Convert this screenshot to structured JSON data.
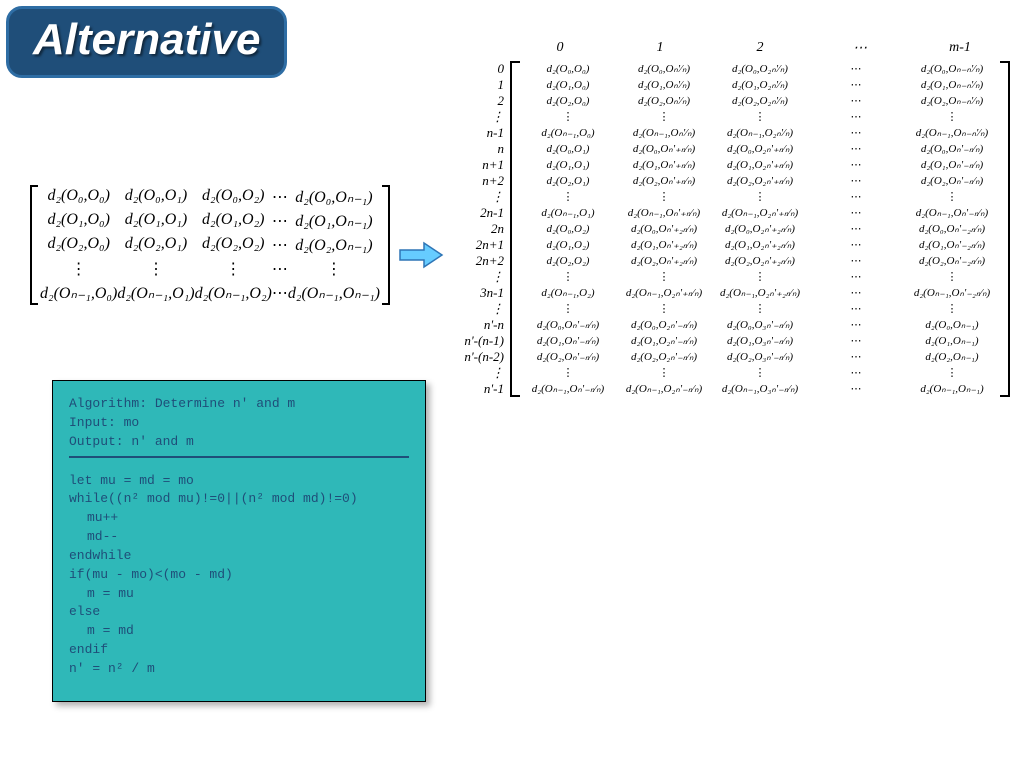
{
  "title": "Alternative",
  "colors": {
    "badge_bg": "#1f4e79",
    "badge_border": "#2e6da4",
    "badge_text": "#ffffff",
    "algo_bg": "#2fb8b8",
    "algo_text": "#1f4e79",
    "arrow_fill": "#66ccff",
    "arrow_stroke": "#2e75b6"
  },
  "small_matrix": {
    "rows": [
      [
        "d₂(O₀,O₀)",
        "d₂(O₀,O₁)",
        "d₂(O₀,O₂)",
        "⋯",
        "d₂(O₀,Oₙ₋₁)"
      ],
      [
        "d₂(O₁,O₀)",
        "d₂(O₁,O₁)",
        "d₂(O₁,O₂)",
        "⋯",
        "d₂(O₁,Oₙ₋₁)"
      ],
      [
        "d₂(O₂,O₀)",
        "d₂(O₂,O₁)",
        "d₂(O₂,O₂)",
        "⋯",
        "d₂(O₂,Oₙ₋₁)"
      ],
      [
        "⋮",
        "⋮",
        "⋮",
        "⋯",
        "⋮"
      ],
      [
        "d₂(Oₙ₋₁,O₀)",
        "d₂(Oₙ₋₁,O₁)",
        "d₂(Oₙ₋₁,O₂)",
        "⋯",
        "d₂(Oₙ₋₁,Oₙ₋₁)"
      ]
    ]
  },
  "algorithm": {
    "header1": "Algorithm: Determine n' and m",
    "header2": "Input: mo",
    "header3": "Output: n' and m",
    "line1": "let mu = md = mo",
    "line2": "while((n² mod mu)!=0||(n² mod md)!=0)",
    "line3": "mu++",
    "line4": "md--",
    "line5": "endwhile",
    "line6": "if(mu - mo)<(mo - md)",
    "line7": "m = mu",
    "line8": "else",
    "line9": "m = md",
    "line10": "endif",
    "line11": "n' = n² / m"
  },
  "big_matrix": {
    "col_headers": [
      "0",
      "1",
      "2",
      "⋯",
      "m-1"
    ],
    "row_labels": [
      "0",
      "1",
      "2",
      "⋮",
      "n-1",
      "n",
      "n+1",
      "n+2",
      "⋮",
      "2n-1",
      "2n",
      "2n+1",
      "2n+2",
      "⋮",
      "3n-1",
      "⋮",
      "n'-n",
      "n'-(n-1)",
      "n'-(n-2)",
      "⋮",
      "n'-1"
    ],
    "rows": [
      [
        "d₂(O₀,O₀)",
        "d₂(O₀,Oₙ'⁄ₙ)",
        "d₂(O₀,O₂ₙ'⁄ₙ)",
        "⋯",
        "d₂(O₀,Oₙ₋ₙ'⁄ₙ)"
      ],
      [
        "d₂(O₁,O₀)",
        "d₂(O₁,Oₙ'⁄ₙ)",
        "d₂(O₁,O₂ₙ'⁄ₙ)",
        "⋯",
        "d₂(O₁,Oₙ₋ₙ'⁄ₙ)"
      ],
      [
        "d₂(O₂,O₀)",
        "d₂(O₂,Oₙ'⁄ₙ)",
        "d₂(O₂,O₂ₙ'⁄ₙ)",
        "⋯",
        "d₂(O₂,Oₙ₋ₙ'⁄ₙ)"
      ],
      [
        "⋮",
        "⋮",
        "⋮",
        "⋯",
        "⋮"
      ],
      [
        "d₂(Oₙ₋₁,O₀)",
        "d₂(Oₙ₋₁,Oₙ'⁄ₙ)",
        "d₂(Oₙ₋₁,O₂ₙ'⁄ₙ)",
        "⋯",
        "d₂(Oₙ₋₁,Oₙ₋ₙ'⁄ₙ)"
      ],
      [
        "d₂(O₀,O₁)",
        "d₂(O₀,Oₙ'₊ₙ⁄ₙ)",
        "d₂(O₀,O₂ₙ'₊ₙ⁄ₙ)",
        "⋯",
        "d₂(O₀,Oₙ'₋ₙ⁄ₙ)"
      ],
      [
        "d₂(O₁,O₁)",
        "d₂(O₁,Oₙ'₊ₙ⁄ₙ)",
        "d₂(O₁,O₂ₙ'₊ₙ⁄ₙ)",
        "⋯",
        "d₂(O₁,Oₙ'₋ₙ⁄ₙ)"
      ],
      [
        "d₂(O₂,O₁)",
        "d₂(O₂,Oₙ'₊ₙ⁄ₙ)",
        "d₂(O₂,O₂ₙ'₊ₙ⁄ₙ)",
        "⋯",
        "d₂(O₂,Oₙ'₋ₙ⁄ₙ)"
      ],
      [
        "⋮",
        "⋮",
        "⋮",
        "⋯",
        "⋮"
      ],
      [
        "d₂(Oₙ₋₁,O₁)",
        "d₂(Oₙ₋₁,Oₙ'₊ₙ⁄ₙ)",
        "d₂(Oₙ₋₁,O₂ₙ'₊ₙ⁄ₙ)",
        "⋯",
        "d₂(Oₙ₋₁,Oₙ'₋ₙ⁄ₙ)"
      ],
      [
        "d₂(O₀,O₂)",
        "d₂(O₀,Oₙ'₊₂ₙ⁄ₙ)",
        "d₂(O₀,O₂ₙ'₊₂ₙ⁄ₙ)",
        "⋯",
        "d₂(O₀,Oₙ'₋₂ₙ⁄ₙ)"
      ],
      [
        "d₂(O₁,O₂)",
        "d₂(O₁,Oₙ'₊₂ₙ⁄ₙ)",
        "d₂(O₁,O₂ₙ'₊₂ₙ⁄ₙ)",
        "⋯",
        "d₂(O₁,Oₙ'₋₂ₙ⁄ₙ)"
      ],
      [
        "d₂(O₂,O₂)",
        "d₂(O₂,Oₙ'₊₂ₙ⁄ₙ)",
        "d₂(O₂,O₂ₙ'₊₂ₙ⁄ₙ)",
        "⋯",
        "d₂(O₂,Oₙ'₋₂ₙ⁄ₙ)"
      ],
      [
        "⋮",
        "⋮",
        "⋮",
        "⋯",
        "⋮"
      ],
      [
        "d₂(Oₙ₋₁,O₂)",
        "d₂(Oₙ₋₁,O₂ₙ'₊ₙ⁄ₙ)",
        "d₂(Oₙ₋₁,O₂ₙ'₊₂ₙ⁄ₙ)",
        "⋯",
        "d₂(Oₙ₋₁,Oₙ'₋₂ₙ⁄ₙ)"
      ],
      [
        "⋮",
        "⋮",
        "⋮",
        "⋯",
        "⋮"
      ],
      [
        "d₂(O₀,Oₙ'₋ₙ⁄ₙ)",
        "d₂(O₀,O₂ₙ'₋ₙ⁄ₙ)",
        "d₂(O₀,O₃ₙ'₋ₙ⁄ₙ)",
        "⋯",
        "d₂(O₀,Oₙ₋₁)"
      ],
      [
        "d₂(O₁,Oₙ'₋ₙ⁄ₙ)",
        "d₂(O₁,O₂ₙ'₋ₙ⁄ₙ)",
        "d₂(O₁,O₃ₙ'₋ₙ⁄ₙ)",
        "⋯",
        "d₂(O₁,Oₙ₋₁)"
      ],
      [
        "d₂(O₂,Oₙ'₋ₙ⁄ₙ)",
        "d₂(O₂,O₂ₙ'₋ₙ⁄ₙ)",
        "d₂(O₂,O₃ₙ'₋ₙ⁄ₙ)",
        "⋯",
        "d₂(O₂,Oₙ₋₁)"
      ],
      [
        "⋮",
        "⋮",
        "⋮",
        "⋯",
        "⋮"
      ],
      [
        "d₂(Oₙ₋₁,Oₙ'₋ₙ⁄ₙ)",
        "d₂(Oₙ₋₁,O₂ₙ'₋ₙ⁄ₙ)",
        "d₂(Oₙ₋₁,O₃ₙ'₋ₙ⁄ₙ)",
        "⋯",
        "d₂(Oₙ₋₁,Oₙ₋₁)"
      ]
    ]
  }
}
